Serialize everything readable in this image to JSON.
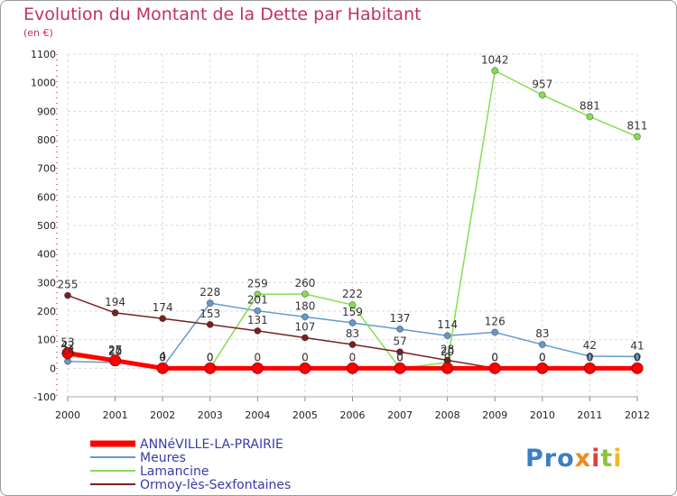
{
  "colors": {
    "accent": "#c0306a",
    "grid": "#d9d9d9",
    "axis": "#cc4b7a"
  },
  "chart_data": {
    "type": "line",
    "title": "Evolution du Montant de la Dette par Habitant",
    "subtitle": "(en €)",
    "x": [
      2000,
      2001,
      2002,
      2003,
      2004,
      2005,
      2006,
      2007,
      2008,
      2009,
      2010,
      2011,
      2012
    ],
    "y_ticks": [
      -100,
      0,
      100,
      200,
      300,
      400,
      500,
      600,
      700,
      800,
      900,
      1000,
      1100
    ],
    "ylim": [
      -100,
      1100
    ],
    "grid": true,
    "legend_position": "bottom-left",
    "series": [
      {
        "name": "ANNéVILLE-LA-PRAIRIE",
        "color": "#ff0000",
        "values": [
          53,
          27,
          0,
          0,
          0,
          0,
          0,
          0,
          0,
          0,
          0,
          0,
          0
        ],
        "labels": [
          "53",
          "27",
          "0",
          "0",
          "0",
          "0",
          "0",
          "0",
          "0",
          "0",
          "0",
          "0",
          "0"
        ]
      },
      {
        "name": "Meures",
        "color": "#6699cc",
        "values": [
          24,
          20,
          4,
          228,
          201,
          180,
          159,
          137,
          114,
          126,
          83,
          42,
          41
        ],
        "labels": [
          "24",
          "20",
          "4",
          "228",
          "201",
          "180",
          "159",
          "137",
          "114",
          "126",
          "83",
          "42",
          "41"
        ]
      },
      {
        "name": "Lamancine",
        "color": "#88dd55",
        "values": [
          42,
          25,
          0,
          0,
          259,
          260,
          222,
          0,
          20,
          1042,
          957,
          881,
          811
        ],
        "labels": [
          "42",
          "25",
          "0",
          "0",
          "259",
          "260",
          "222",
          "0",
          "20",
          "1042",
          "957",
          "881",
          "811"
        ]
      },
      {
        "name": "Ormoy-lès-Sexfontaines",
        "color": "#772222",
        "values": [
          255,
          194,
          174,
          153,
          131,
          107,
          83,
          57,
          28,
          0,
          0,
          0,
          0
        ],
        "labels": [
          "255",
          "194",
          "174",
          "153",
          "131",
          "107",
          "83",
          "57",
          "28",
          "0",
          "0",
          "0",
          "0"
        ]
      }
    ]
  },
  "logo": {
    "text": "Proxiti"
  }
}
